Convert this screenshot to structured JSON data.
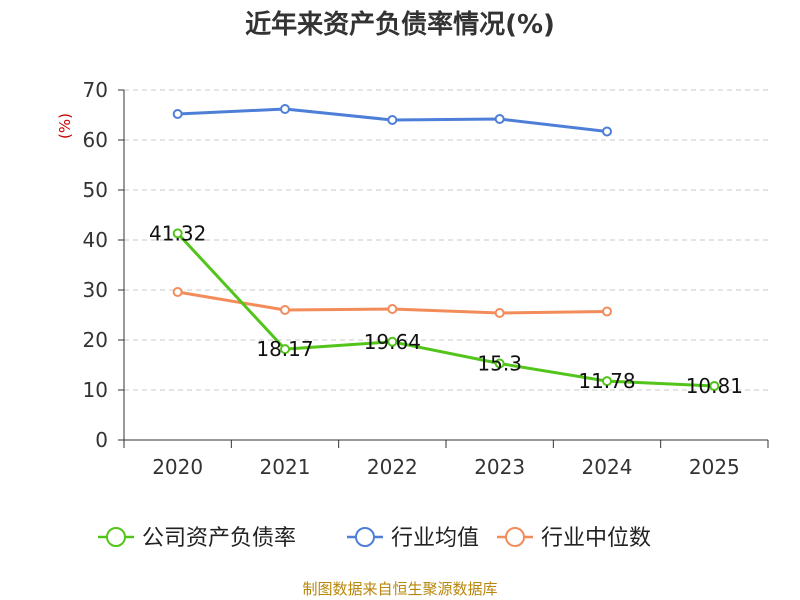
{
  "title": "近年来资产负债率情况(%)",
  "footer": "制图数据来自恒生聚源数据库",
  "chart_data": {
    "type": "line",
    "title": "近年来资产负债率情况(%)",
    "ylabel": "(%)",
    "xlabel": "",
    "categories": [
      "2020",
      "2021",
      "2022",
      "2023",
      "2024",
      "2025"
    ],
    "ylim": [
      0,
      70
    ],
    "yticks": [
      0,
      10,
      20,
      30,
      40,
      50,
      60,
      70
    ],
    "grid": true,
    "legend": "bottom",
    "series": [
      {
        "name": "公司资产负债率",
        "color": "#52c41a",
        "values": [
          41.32,
          18.17,
          19.64,
          15.3,
          11.78,
          10.81
        ],
        "labels": [
          "41.32",
          "18.17",
          "19.64",
          "15.3",
          "11.78",
          "10.81"
        ]
      },
      {
        "name": "行业均值",
        "color": "#4e7fd8",
        "values": [
          65.2,
          66.2,
          64.0,
          64.2,
          61.7,
          null
        ]
      },
      {
        "name": "行业中位数",
        "color": "#f28c5a",
        "values": [
          29.6,
          26.0,
          26.2,
          25.4,
          25.7,
          null
        ]
      }
    ]
  }
}
